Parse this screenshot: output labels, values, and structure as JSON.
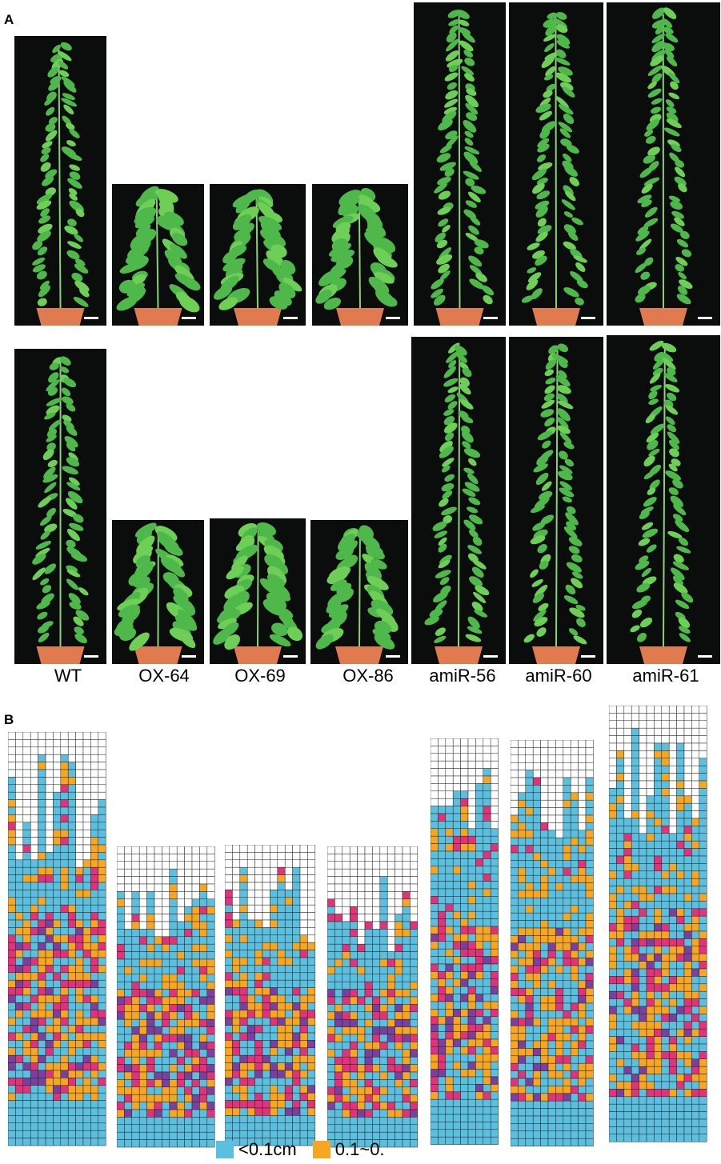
{
  "panels": {
    "a": "A",
    "b": "B"
  },
  "genotypes": [
    "WT",
    "OX-64",
    "OX-69",
    "OX-86",
    "amiR-56",
    "amiR-60",
    "amiR-61"
  ],
  "colors": {
    "blue": "#5bc0e0",
    "orange": "#f6a623",
    "pink": "#e0337a",
    "purple": "#7b3fa0",
    "empty": "#ffffff",
    "background": "#0a0d0c",
    "leaf": "#4fb84a",
    "pot": "#e07a4f"
  },
  "legend": [
    {
      "label": "<0.1cm",
      "color": "#5bc0e0"
    },
    {
      "label": "0.1~0.",
      "color": "#f6a623"
    }
  ]
}
